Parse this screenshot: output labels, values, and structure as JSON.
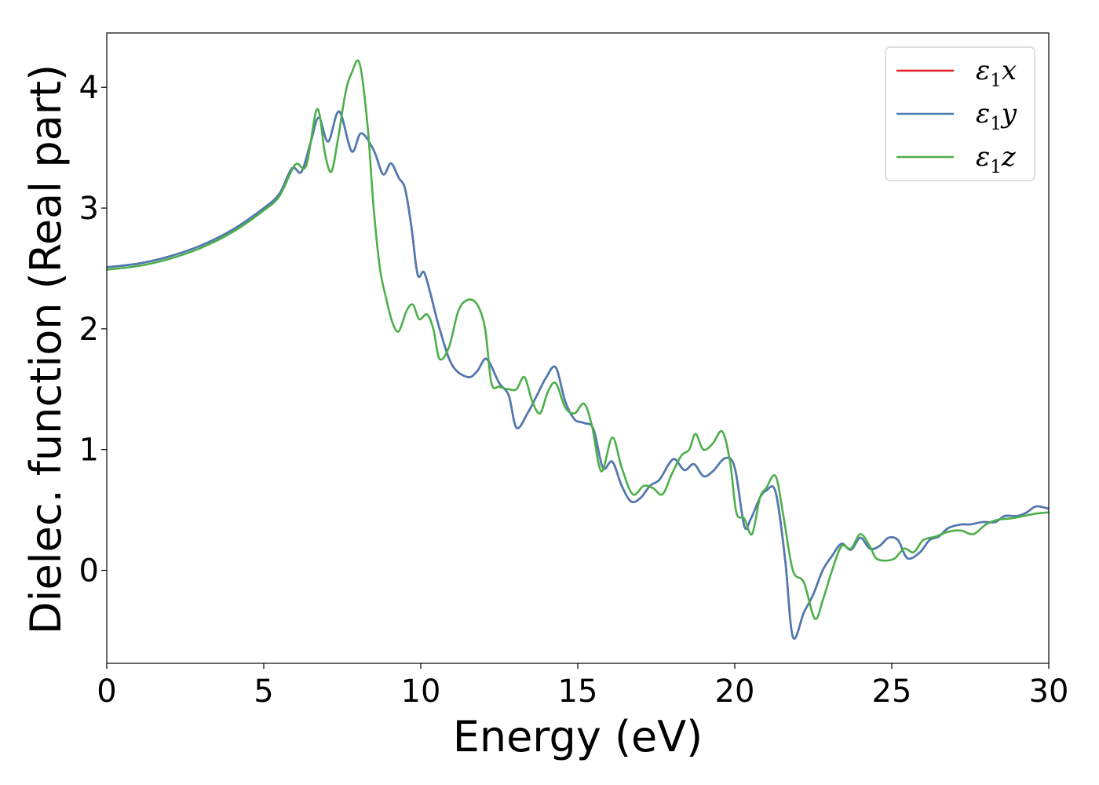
{
  "chart_data": {
    "type": "line",
    "xlabel": "Energy (eV)",
    "ylabel": "Dielec. function (Real part)",
    "xlim": [
      0,
      30
    ],
    "ylim": [
      -0.77,
      4.45
    ],
    "xticks": [
      0,
      5,
      10,
      15,
      20,
      25,
      30
    ],
    "yticks": [
      0,
      1,
      2,
      3,
      4
    ],
    "grid": false,
    "legend_position": "top-right",
    "series": [
      {
        "name": "ε1x",
        "symbol": "ε",
        "subscript": "1",
        "axis": "x",
        "color": "#e41a1c",
        "x": [
          0,
          1,
          2,
          3,
          4,
          5,
          5.5,
          5.9,
          6.2,
          6.5,
          6.75,
          7.05,
          7.4,
          7.8,
          8.1,
          8.5,
          8.8,
          9.05,
          9.3,
          9.5,
          9.7,
          9.9,
          10.1,
          10.3,
          10.6,
          11,
          11.5,
          11.8,
          12.1,
          12.5,
          12.8,
          13.05,
          13.4,
          13.7,
          14,
          14.3,
          14.6,
          14.9,
          15.2,
          15.5,
          15.8,
          16.1,
          16.4,
          16.7,
          17,
          17.3,
          17.6,
          17.9,
          18.1,
          18.4,
          18.7,
          19,
          19.3,
          19.7,
          20,
          20.3,
          20.5,
          20.8,
          21,
          21.3,
          21.6,
          21.85,
          22.2,
          22.5,
          22.8,
          23.1,
          23.4,
          23.7,
          24,
          24.3,
          24.6,
          24.9,
          25.2,
          25.5,
          25.9,
          26.2,
          26.5,
          26.8,
          27.2,
          27.5,
          27.9,
          28.3,
          28.6,
          29,
          29.3,
          29.6,
          30
        ],
        "y": [
          2.51,
          2.54,
          2.6,
          2.69,
          2.82,
          3.0,
          3.12,
          3.33,
          3.3,
          3.55,
          3.75,
          3.55,
          3.8,
          3.47,
          3.62,
          3.48,
          3.28,
          3.37,
          3.25,
          3.16,
          2.85,
          2.45,
          2.47,
          2.3,
          2.0,
          1.7,
          1.6,
          1.65,
          1.75,
          1.55,
          1.45,
          1.18,
          1.3,
          1.45,
          1.6,
          1.68,
          1.4,
          1.25,
          1.22,
          1.17,
          0.85,
          0.9,
          0.7,
          0.57,
          0.6,
          0.7,
          0.75,
          0.88,
          0.92,
          0.83,
          0.88,
          0.78,
          0.82,
          0.93,
          0.85,
          0.37,
          0.42,
          0.6,
          0.66,
          0.65,
          0.1,
          -0.55,
          -0.35,
          -0.2,
          0.0,
          0.12,
          0.22,
          0.17,
          0.27,
          0.18,
          0.2,
          0.27,
          0.25,
          0.1,
          0.15,
          0.25,
          0.28,
          0.35,
          0.38,
          0.38,
          0.4,
          0.4,
          0.45,
          0.45,
          0.48,
          0.53,
          0.51
        ]
      },
      {
        "name": "ε1y",
        "symbol": "ε",
        "subscript": "1",
        "axis": "y",
        "color": "#4a7cb5",
        "x": [
          0,
          1,
          2,
          3,
          4,
          5,
          5.5,
          5.9,
          6.2,
          6.5,
          6.75,
          7.05,
          7.4,
          7.8,
          8.1,
          8.5,
          8.8,
          9.05,
          9.3,
          9.5,
          9.7,
          9.9,
          10.1,
          10.3,
          10.6,
          11,
          11.5,
          11.8,
          12.1,
          12.5,
          12.8,
          13.05,
          13.4,
          13.7,
          14,
          14.3,
          14.6,
          14.9,
          15.2,
          15.5,
          15.8,
          16.1,
          16.4,
          16.7,
          17,
          17.3,
          17.6,
          17.9,
          18.1,
          18.4,
          18.7,
          19,
          19.3,
          19.7,
          20,
          20.3,
          20.5,
          20.8,
          21,
          21.3,
          21.6,
          21.85,
          22.2,
          22.5,
          22.8,
          23.1,
          23.4,
          23.7,
          24,
          24.3,
          24.6,
          24.9,
          25.2,
          25.5,
          25.9,
          26.2,
          26.5,
          26.8,
          27.2,
          27.5,
          27.9,
          28.3,
          28.6,
          29,
          29.3,
          29.6,
          30
        ],
        "y": [
          2.51,
          2.54,
          2.6,
          2.69,
          2.82,
          3.0,
          3.12,
          3.33,
          3.3,
          3.55,
          3.75,
          3.55,
          3.8,
          3.47,
          3.62,
          3.48,
          3.28,
          3.37,
          3.25,
          3.16,
          2.85,
          2.45,
          2.47,
          2.3,
          2.0,
          1.7,
          1.6,
          1.65,
          1.75,
          1.55,
          1.45,
          1.18,
          1.3,
          1.45,
          1.6,
          1.68,
          1.4,
          1.25,
          1.22,
          1.17,
          0.85,
          0.9,
          0.7,
          0.57,
          0.6,
          0.7,
          0.75,
          0.88,
          0.92,
          0.83,
          0.88,
          0.78,
          0.82,
          0.93,
          0.85,
          0.37,
          0.42,
          0.6,
          0.66,
          0.65,
          0.1,
          -0.55,
          -0.35,
          -0.2,
          0.0,
          0.12,
          0.22,
          0.17,
          0.27,
          0.18,
          0.2,
          0.27,
          0.25,
          0.1,
          0.15,
          0.25,
          0.28,
          0.35,
          0.38,
          0.38,
          0.4,
          0.4,
          0.45,
          0.45,
          0.48,
          0.53,
          0.51
        ]
      },
      {
        "name": "ε1z",
        "symbol": "ε",
        "subscript": "1",
        "axis": "z",
        "color": "#4daf4a",
        "x": [
          0,
          1,
          2,
          3,
          4,
          5,
          5.5,
          6.0,
          6.35,
          6.7,
          6.95,
          7.15,
          7.35,
          7.6,
          7.8,
          8.05,
          8.3,
          8.5,
          8.7,
          8.9,
          9.1,
          9.3,
          9.55,
          9.75,
          9.95,
          10.2,
          10.4,
          10.6,
          10.9,
          11.2,
          11.5,
          11.8,
          12.05,
          12.25,
          12.5,
          12.8,
          13.05,
          13.3,
          13.55,
          13.8,
          14.05,
          14.3,
          14.6,
          14.9,
          15.2,
          15.45,
          15.75,
          16.1,
          16.4,
          16.75,
          17.1,
          17.4,
          17.7,
          18.0,
          18.3,
          18.55,
          18.75,
          19.0,
          19.3,
          19.6,
          19.85,
          20.05,
          20.3,
          20.55,
          20.8,
          21.0,
          21.3,
          21.55,
          21.85,
          22.2,
          22.55,
          22.8,
          23.1,
          23.4,
          23.7,
          24.0,
          24.3,
          24.5,
          24.8,
          25.1,
          25.4,
          25.7,
          26.0,
          26.4,
          26.8,
          27.2,
          27.6,
          28.0,
          28.4,
          28.8,
          29.2,
          29.6,
          30
        ],
        "y": [
          2.49,
          2.52,
          2.58,
          2.67,
          2.8,
          2.98,
          3.1,
          3.36,
          3.35,
          3.82,
          3.45,
          3.3,
          3.55,
          3.95,
          4.12,
          4.2,
          3.7,
          3.0,
          2.5,
          2.25,
          2.05,
          1.98,
          2.15,
          2.2,
          2.08,
          2.12,
          2.0,
          1.75,
          1.85,
          2.15,
          2.24,
          2.2,
          2.0,
          1.55,
          1.52,
          1.5,
          1.5,
          1.6,
          1.4,
          1.3,
          1.48,
          1.55,
          1.35,
          1.3,
          1.38,
          1.2,
          0.82,
          1.1,
          0.85,
          0.63,
          0.7,
          0.68,
          0.63,
          0.8,
          0.95,
          1.0,
          1.13,
          1.0,
          1.05,
          1.15,
          0.9,
          0.48,
          0.43,
          0.3,
          0.6,
          0.68,
          0.78,
          0.45,
          0.0,
          -0.1,
          -0.4,
          -0.25,
          0.0,
          0.2,
          0.18,
          0.3,
          0.2,
          0.1,
          0.08,
          0.1,
          0.18,
          0.15,
          0.25,
          0.28,
          0.32,
          0.33,
          0.3,
          0.38,
          0.42,
          0.43,
          0.45,
          0.47,
          0.48
        ]
      }
    ]
  }
}
